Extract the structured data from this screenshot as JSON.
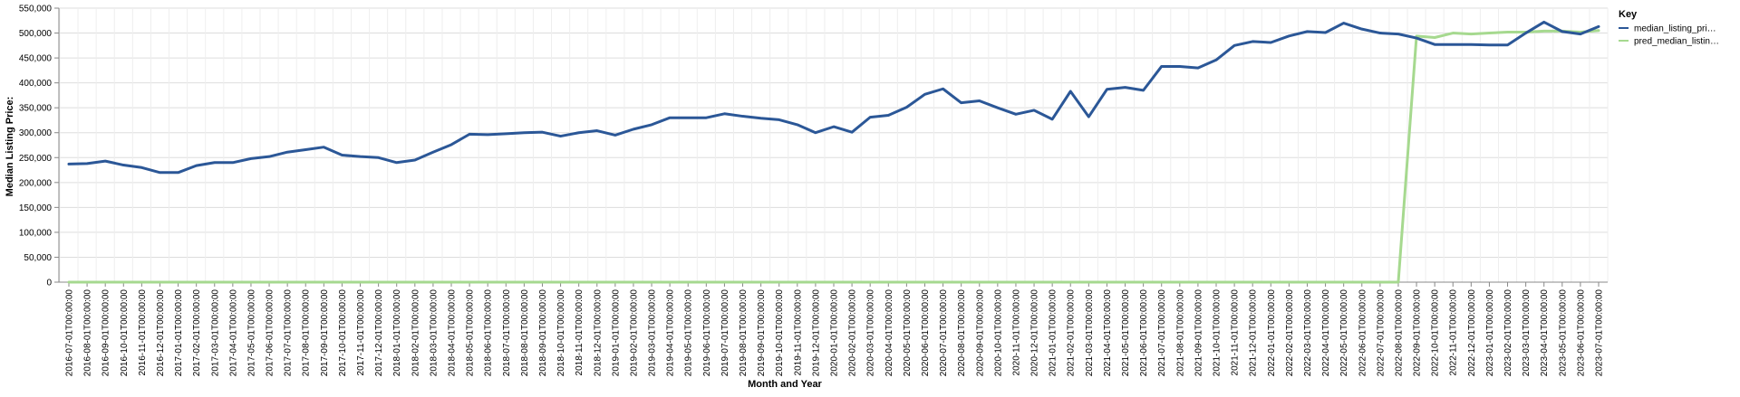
{
  "chart_data": {
    "type": "line",
    "xlabel": "Month and Year",
    "ylabel": "Median Listing Price:",
    "ylim": [
      0,
      550000
    ],
    "yticks": [
      0,
      50000,
      100000,
      150000,
      200000,
      250000,
      300000,
      350000,
      400000,
      450000,
      500000,
      550000
    ],
    "ytick_labels": [
      "0",
      "50,000",
      "100,000",
      "150,000",
      "200,000",
      "250,000",
      "300,000",
      "350,000",
      "400,000",
      "450,000",
      "500,000",
      "550,000"
    ],
    "grid": true,
    "legend": {
      "title": "Key",
      "position": "right"
    },
    "x": [
      "2016-07-01T00:00:00",
      "2016-08-01T00:00:00",
      "2016-09-01T00:00:00",
      "2016-10-01T00:00:00",
      "2016-11-01T00:00:00",
      "2016-12-01T00:00:00",
      "2017-01-01T00:00:00",
      "2017-02-01T00:00:00",
      "2017-03-01T00:00:00",
      "2017-04-01T00:00:00",
      "2017-05-01T00:00:00",
      "2017-06-01T00:00:00",
      "2017-07-01T00:00:00",
      "2017-08-01T00:00:00",
      "2017-09-01T00:00:00",
      "2017-10-01T00:00:00",
      "2017-11-01T00:00:00",
      "2017-12-01T00:00:00",
      "2018-01-01T00:00:00",
      "2018-02-01T00:00:00",
      "2018-03-01T00:00:00",
      "2018-04-01T00:00:00",
      "2018-05-01T00:00:00",
      "2018-06-01T00:00:00",
      "2018-07-01T00:00:00",
      "2018-08-01T00:00:00",
      "2018-09-01T00:00:00",
      "2018-10-01T00:00:00",
      "2018-11-01T00:00:00",
      "2018-12-01T00:00:00",
      "2019-01-01T00:00:00",
      "2019-02-01T00:00:00",
      "2019-03-01T00:00:00",
      "2019-04-01T00:00:00",
      "2019-05-01T00:00:00",
      "2019-06-01T00:00:00",
      "2019-07-01T00:00:00",
      "2019-08-01T00:00:00",
      "2019-09-01T00:00:00",
      "2019-10-01T00:00:00",
      "2019-11-01T00:00:00",
      "2019-12-01T00:00:00",
      "2020-01-01T00:00:00",
      "2020-02-01T00:00:00",
      "2020-03-01T00:00:00",
      "2020-04-01T00:00:00",
      "2020-05-01T00:00:00",
      "2020-06-01T00:00:00",
      "2020-07-01T00:00:00",
      "2020-08-01T00:00:00",
      "2020-09-01T00:00:00",
      "2020-10-01T00:00:00",
      "2020-11-01T00:00:00",
      "2020-12-01T00:00:00",
      "2021-01-01T00:00:00",
      "2021-02-01T00:00:00",
      "2021-03-01T00:00:00",
      "2021-04-01T00:00:00",
      "2021-05-01T00:00:00",
      "2021-06-01T00:00:00",
      "2021-07-01T00:00:00",
      "2021-08-01T00:00:00",
      "2021-09-01T00:00:00",
      "2021-10-01T00:00:00",
      "2021-11-01T00:00:00",
      "2021-12-01T00:00:00",
      "2022-01-01T00:00:00",
      "2022-02-01T00:00:00",
      "2022-03-01T00:00:00",
      "2022-04-01T00:00:00",
      "2022-05-01T00:00:00",
      "2022-06-01T00:00:00",
      "2022-07-01T00:00:00",
      "2022-08-01T00:00:00",
      "2022-09-01T00:00:00",
      "2022-10-01T00:00:00",
      "2022-11-01T00:00:00",
      "2022-12-01T00:00:00",
      "2023-01-01T00:00:00",
      "2023-02-01T00:00:00",
      "2023-03-01T00:00:00",
      "2023-04-01T00:00:00",
      "2023-05-01T00:00:00",
      "2023-06-01T00:00:00",
      "2023-07-01T00:00:00"
    ],
    "series": [
      {
        "name": "median_listing_pri…",
        "color": "#2b5797",
        "values": [
          237000,
          238000,
          243000,
          235000,
          230000,
          220000,
          220000,
          234000,
          240000,
          240000,
          248000,
          252000,
          261000,
          266000,
          271000,
          255000,
          252000,
          250000,
          240000,
          245000,
          261000,
          276000,
          297000,
          296000,
          298000,
          300000,
          301000,
          293000,
          300000,
          304000,
          295000,
          307000,
          316000,
          330000,
          330000,
          330000,
          338000,
          333000,
          329000,
          326000,
          316000,
          300000,
          312000,
          301000,
          331000,
          335000,
          351000,
          377000,
          388000,
          360000,
          364000,
          350000,
          337000,
          345000,
          327000,
          383000,
          332000,
          387000,
          391000,
          385000,
          433000,
          433000,
          430000,
          446000,
          475000,
          483000,
          481000,
          494000,
          503000,
          501000,
          520000,
          508000,
          500000,
          498000,
          490000,
          477000,
          477000,
          477000,
          476000,
          476000,
          500000,
          522000,
          503000,
          498000,
          513000
        ]
      },
      {
        "name": "pred_median_listin…",
        "color": "#a6d98f",
        "values": [
          0,
          0,
          0,
          0,
          0,
          0,
          0,
          0,
          0,
          0,
          0,
          0,
          0,
          0,
          0,
          0,
          0,
          0,
          0,
          0,
          0,
          0,
          0,
          0,
          0,
          0,
          0,
          0,
          0,
          0,
          0,
          0,
          0,
          0,
          0,
          0,
          0,
          0,
          0,
          0,
          0,
          0,
          0,
          0,
          0,
          0,
          0,
          0,
          0,
          0,
          0,
          0,
          0,
          0,
          0,
          0,
          0,
          0,
          0,
          0,
          0,
          0,
          0,
          0,
          0,
          0,
          0,
          0,
          0,
          0,
          0,
          0,
          0,
          0,
          494000,
          491000,
          500000,
          498000,
          500000,
          502000,
          502000,
          504000,
          504000,
          502000,
          505000
        ]
      }
    ]
  }
}
